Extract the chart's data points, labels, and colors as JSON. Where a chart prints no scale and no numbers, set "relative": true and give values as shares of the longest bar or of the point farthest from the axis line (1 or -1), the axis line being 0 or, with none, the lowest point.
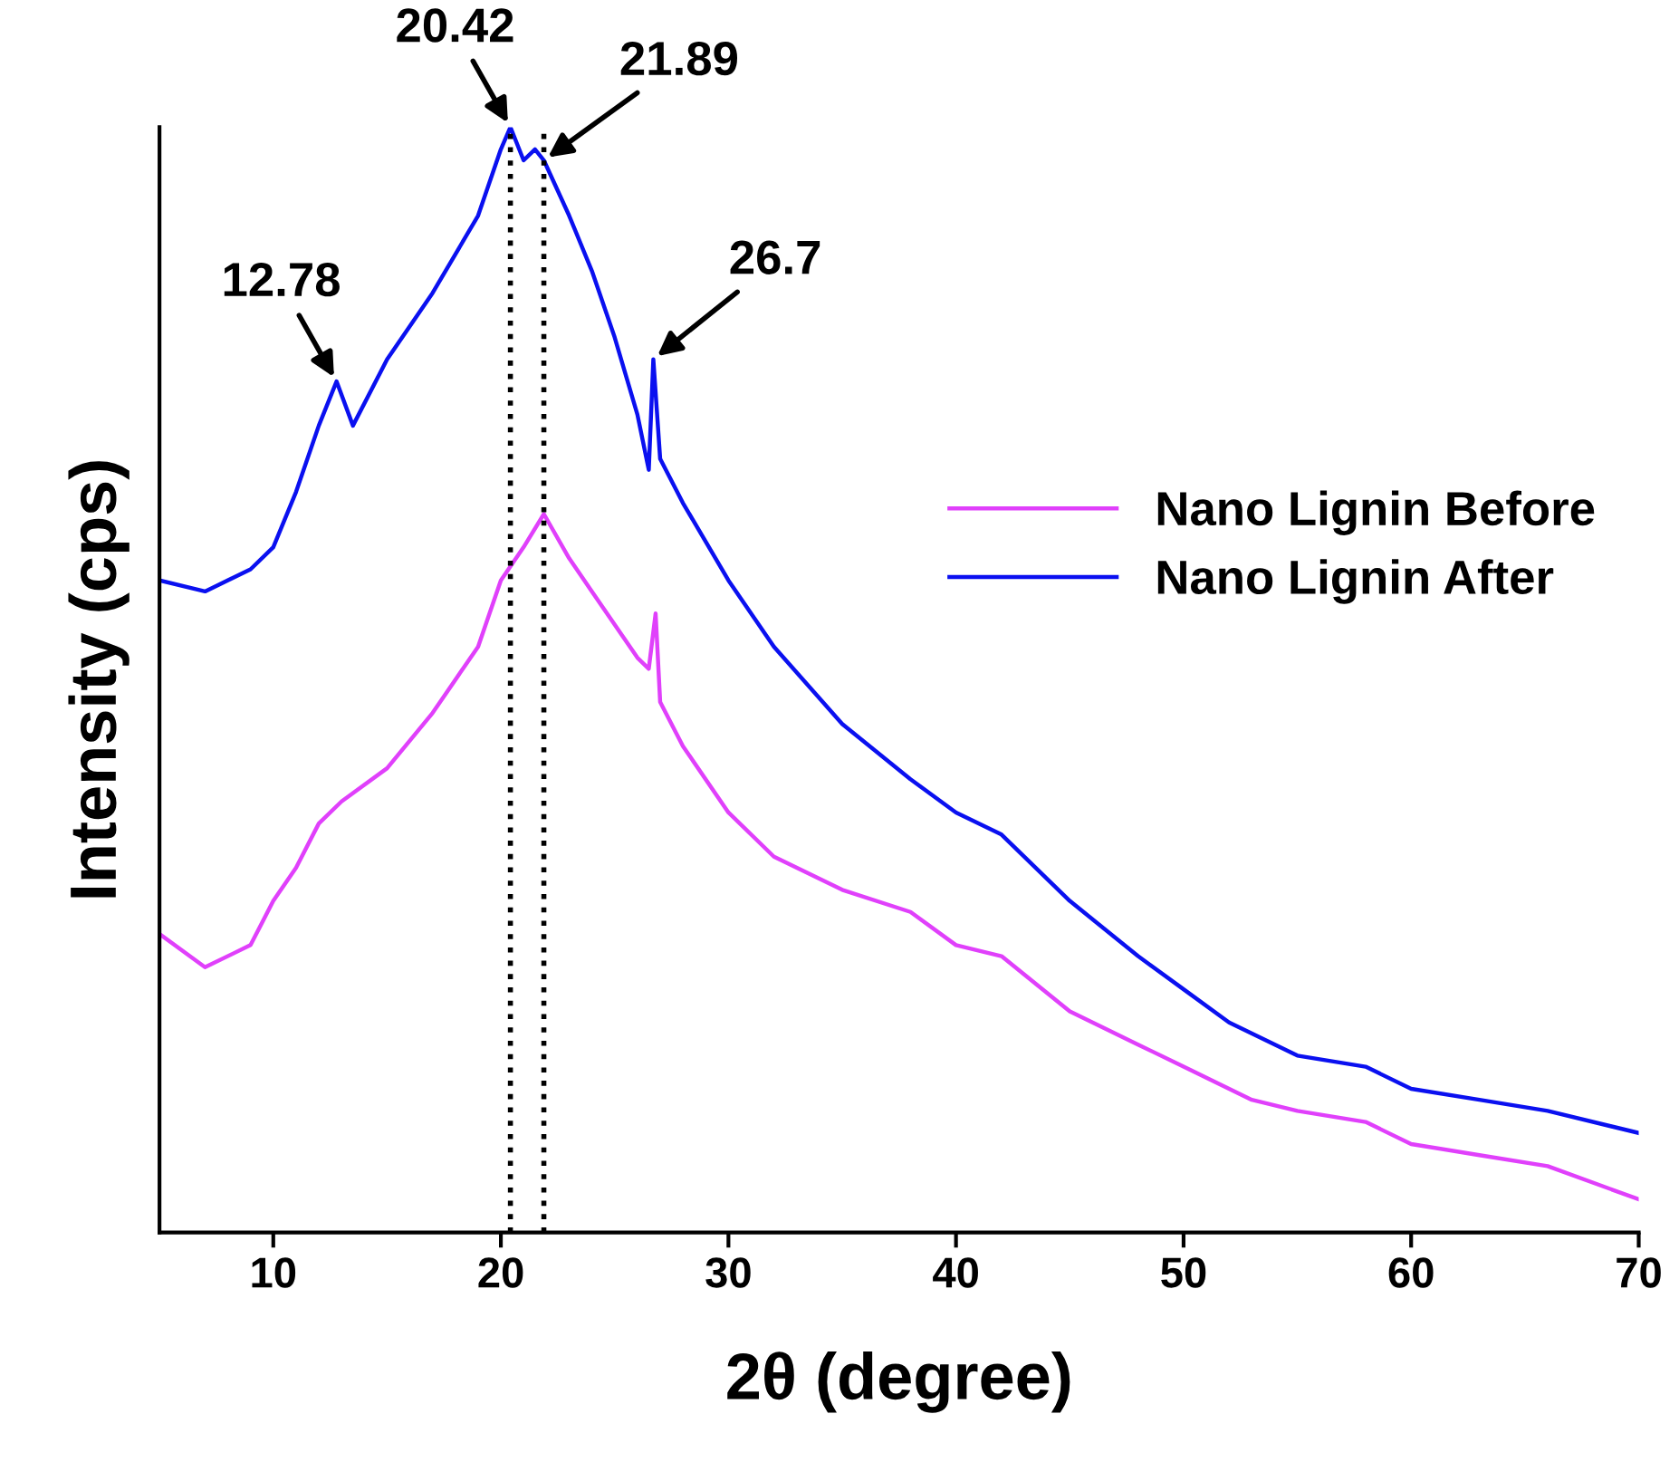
{
  "chart_data": {
    "type": "line",
    "xlabel": "2θ (degree)",
    "ylabel": "Intensity (cps)",
    "relative": true,
    "xlim": [
      5,
      70
    ],
    "xticks": [
      10,
      20,
      30,
      40,
      50,
      60,
      70
    ],
    "tick_labels": "x",
    "legend": "center right",
    "grid": false,
    "marker": "none",
    "line_style": "solid",
    "series": [
      {
        "name": "Nano Lignin Before",
        "color": "#e040fb",
        "x": [
          5,
          7,
          9,
          10,
          11,
          12,
          13,
          15,
          17,
          19,
          20,
          21,
          21.89,
          23,
          24,
          25,
          26,
          26.5,
          26.8,
          27,
          28,
          30,
          32,
          35,
          38,
          40,
          42,
          45,
          48,
          50,
          53,
          55,
          58,
          60,
          63,
          66,
          70
        ],
        "values": [
          0.27,
          0.24,
          0.26,
          0.3,
          0.33,
          0.37,
          0.39,
          0.42,
          0.47,
          0.53,
          0.59,
          0.62,
          0.65,
          0.61,
          0.58,
          0.55,
          0.52,
          0.51,
          0.56,
          0.48,
          0.44,
          0.38,
          0.34,
          0.31,
          0.29,
          0.26,
          0.25,
          0.2,
          0.17,
          0.15,
          0.12,
          0.11,
          0.1,
          0.08,
          0.07,
          0.06,
          0.03
        ]
      },
      {
        "name": "Nano Lignin After",
        "color": "#0a10f0",
        "x": [
          5,
          7,
          9,
          10,
          11,
          12,
          12.78,
          13.5,
          15,
          17,
          19,
          20,
          20.42,
          21,
          21.5,
          21.89,
          23,
          24,
          25,
          26,
          26.5,
          26.7,
          27,
          28,
          30,
          32,
          35,
          38,
          40,
          42,
          45,
          48,
          50,
          52,
          55,
          58,
          60,
          63,
          66,
          70
        ],
        "values": [
          0.59,
          0.58,
          0.6,
          0.62,
          0.67,
          0.73,
          0.77,
          0.73,
          0.79,
          0.85,
          0.92,
          0.98,
          1.0,
          0.97,
          0.98,
          0.97,
          0.92,
          0.87,
          0.81,
          0.74,
          0.69,
          0.79,
          0.7,
          0.66,
          0.59,
          0.53,
          0.46,
          0.41,
          0.38,
          0.36,
          0.3,
          0.25,
          0.22,
          0.19,
          0.16,
          0.15,
          0.13,
          0.12,
          0.11,
          0.09
        ]
      }
    ],
    "ref_lines": [
      {
        "axis": "x",
        "value": 20.42,
        "color": "#000000",
        "line_style": "dotted"
      },
      {
        "axis": "x",
        "value": 21.89,
        "color": "#000000",
        "line_style": "dotted"
      }
    ],
    "annotations": [
      {
        "text": "12.78",
        "x": 12.78,
        "y": 0.77
      },
      {
        "text": "20.42",
        "x": 20.42,
        "y": 1.0
      },
      {
        "text": "21.89",
        "x": 21.89,
        "y": 0.97
      },
      {
        "text": "26.7",
        "x": 26.7,
        "y": 0.79
      }
    ]
  }
}
